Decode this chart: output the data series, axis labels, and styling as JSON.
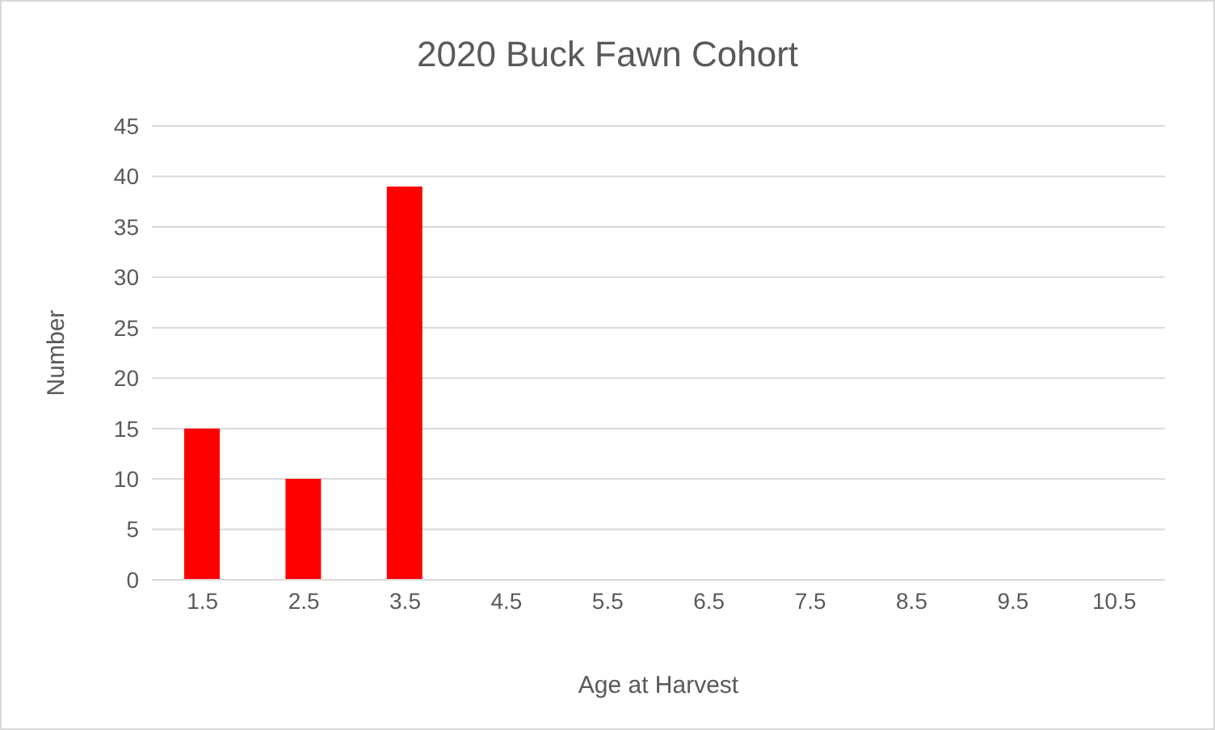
{
  "chart_data": {
    "type": "bar",
    "title": "2020 Buck Fawn Cohort",
    "xlabel": "Age at Harvest",
    "ylabel": "Number",
    "categories": [
      "1.5",
      "2.5",
      "3.5",
      "4.5",
      "5.5",
      "6.5",
      "7.5",
      "8.5",
      "9.5",
      "10.5"
    ],
    "values": [
      15,
      10,
      39,
      0,
      0,
      0,
      0,
      0,
      0,
      0
    ],
    "color": "#ff0000",
    "ylim": [
      0,
      45
    ],
    "yticks": [
      0,
      5,
      10,
      15,
      20,
      25,
      30,
      35,
      40,
      45
    ],
    "grid": "y"
  }
}
